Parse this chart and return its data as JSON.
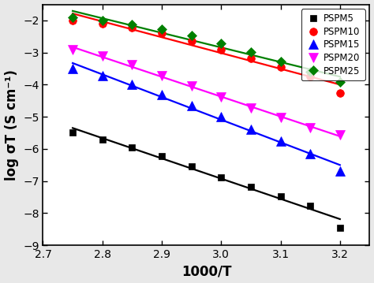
{
  "title": "",
  "xlabel": "1000/T",
  "ylabel": "log σT (S cm⁻¹)",
  "xlim": [
    2.7,
    3.25
  ],
  "ylim": [
    -9,
    -1.5
  ],
  "yticks": [
    -9,
    -8,
    -7,
    -6,
    -5,
    -4,
    -3,
    -2
  ],
  "xticks": [
    2.7,
    2.8,
    2.9,
    3.0,
    3.1,
    3.2
  ],
  "series": [
    {
      "label": "PSPM5",
      "color": "#000000",
      "marker": "s",
      "marker_size": 6,
      "x": [
        2.75,
        2.8,
        2.85,
        2.9,
        2.95,
        3.0,
        3.05,
        3.1,
        3.15,
        3.2
      ],
      "y": [
        -5.48,
        -5.72,
        -5.95,
        -6.22,
        -6.55,
        -6.88,
        -7.18,
        -7.48,
        -7.78,
        -8.45
      ]
    },
    {
      "label": "PSPM10",
      "color": "#ff0000",
      "marker": "o",
      "marker_size": 7,
      "x": [
        2.75,
        2.8,
        2.85,
        2.9,
        2.95,
        3.0,
        3.05,
        3.1,
        3.15,
        3.2
      ],
      "y": [
        -2.0,
        -2.1,
        -2.22,
        -2.4,
        -2.65,
        -2.92,
        -3.18,
        -3.45,
        -3.75,
        -4.25
      ]
    },
    {
      "label": "PSPM15",
      "color": "#0000ff",
      "marker": "^",
      "marker_size": 8,
      "x": [
        2.75,
        2.8,
        2.85,
        2.9,
        2.95,
        3.0,
        3.05,
        3.1,
        3.15,
        3.2
      ],
      "y": [
        -3.5,
        -3.72,
        -3.98,
        -4.32,
        -4.65,
        -5.0,
        -5.38,
        -5.75,
        -6.15,
        -6.7
      ]
    },
    {
      "label": "PSPM20",
      "color": "#ff00ff",
      "marker": "v",
      "marker_size": 8,
      "x": [
        2.75,
        2.8,
        2.85,
        2.9,
        2.95,
        3.0,
        3.05,
        3.1,
        3.15,
        3.2
      ],
      "y": [
        -2.92,
        -3.1,
        -3.38,
        -3.72,
        -4.05,
        -4.38,
        -4.72,
        -5.02,
        -5.35,
        -5.55
      ]
    },
    {
      "label": "PSPM25",
      "color": "#008000",
      "marker": "D",
      "marker_size": 6,
      "x": [
        2.75,
        2.8,
        2.85,
        2.9,
        2.95,
        3.0,
        3.05,
        3.1,
        3.15,
        3.2
      ],
      "y": [
        -1.9,
        -2.0,
        -2.12,
        -2.28,
        -2.48,
        -2.72,
        -2.98,
        -3.28,
        -3.6,
        -3.92
      ]
    }
  ],
  "legend_loc": "upper right",
  "tick_fontsize": 10,
  "label_fontsize": 12,
  "linewidth": 1.6,
  "fig_bg": "#e8e8e8",
  "ax_bg": "#ffffff"
}
